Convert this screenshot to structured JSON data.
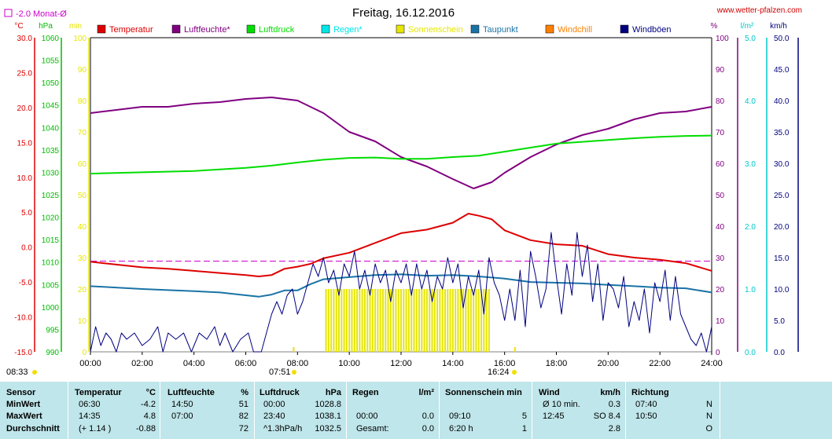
{
  "title": "Freitag, 16.12.2016",
  "site": "www.wetter-pfalzen.com",
  "monthly_avg_label": "-2.0 Monat-Ø",
  "axis_units": {
    "temp": "°C",
    "press": "hPa",
    "sun": "min",
    "hum": "%",
    "rain": "l/m²",
    "wind": "km/h"
  },
  "legend": [
    {
      "label": "Temperatur",
      "color": "#dd0000"
    },
    {
      "label": "Luftfeuchte*",
      "color": "#800080"
    },
    {
      "label": "Luftdruck",
      "color": "#00dd00"
    },
    {
      "label": "Regen*",
      "color": "#00e6e6"
    },
    {
      "label": "Sonnenschein",
      "color": "#e6e600"
    },
    {
      "label": "Taupunkt",
      "color": "#1a73a6"
    },
    {
      "label": "Windchill",
      "color": "#ff8000"
    },
    {
      "label": "Windböen",
      "color": "#000080"
    }
  ],
  "sun_times": {
    "sunrise": "08:33",
    "sunrise_mark": "07:51",
    "sunset": "16:24"
  },
  "colors": {
    "temp_axis": "#dd0000",
    "press_axis": "#00bb00",
    "sun_axis": "#e6e600",
    "hum_axis": "#800080",
    "rain_axis": "#00c8c8",
    "wind_axis": "#000080",
    "monthly": "#cc00cc"
  },
  "chart_data": {
    "type": "line",
    "title": "Freitag, 16.12.2016",
    "x_ticks": [
      "00:00",
      "02:00",
      "04:00",
      "06:00",
      "08:00",
      "10:00",
      "12:00",
      "14:00",
      "16:00",
      "18:00",
      "20:00",
      "22:00",
      "24:00"
    ],
    "xlim_hours": [
      0,
      24
    ],
    "axes": {
      "temp": {
        "ticks": [
          "30.0",
          "25.0",
          "20.0",
          "15.0",
          "10.0",
          "5.0",
          "0.0",
          "-5.0",
          "-10.0",
          "-15.0"
        ],
        "ylim": [
          -15,
          30
        ]
      },
      "press": {
        "ticks": [
          "1060",
          "1055",
          "1050",
          "1045",
          "1040",
          "1035",
          "1030",
          "1025",
          "1020",
          "1015",
          "1010",
          "1005",
          "1000",
          "995",
          "990"
        ],
        "ylim": [
          990,
          1060
        ]
      },
      "sun": {
        "ticks": [
          "100",
          "90",
          "80",
          "70",
          "60",
          "50",
          "40",
          "30",
          "20",
          "10",
          "0"
        ],
        "ylim": [
          0,
          100
        ]
      },
      "hum": {
        "ticks": [
          "100",
          "90",
          "80",
          "70",
          "60",
          "50",
          "40",
          "30",
          "20",
          "10",
          "0"
        ],
        "ylim": [
          0,
          100
        ]
      },
      "rain": {
        "ticks": [
          "5.0",
          "4.0",
          "3.0",
          "2.0",
          "1.0",
          "0.0"
        ],
        "ylim": [
          0,
          5
        ]
      },
      "wind": {
        "ticks": [
          "50.0",
          "45.0",
          "40.0",
          "35.0",
          "30.0",
          "25.0",
          "20.0",
          "15.0",
          "10.0",
          "5.0",
          "0.0"
        ],
        "ylim": [
          0,
          50
        ]
      }
    },
    "monthly_avg_temp": -2.0,
    "series": [
      {
        "name": "Luftfeuchte*",
        "axis": "hum",
        "color": "#800080",
        "points": [
          [
            0,
            76
          ],
          [
            1,
            77
          ],
          [
            2,
            78
          ],
          [
            3,
            78
          ],
          [
            4,
            79
          ],
          [
            5,
            79.5
          ],
          [
            6,
            80.5
          ],
          [
            7,
            81
          ],
          [
            8,
            80
          ],
          [
            9,
            76
          ],
          [
            10,
            70
          ],
          [
            11,
            67
          ],
          [
            12,
            62
          ],
          [
            13,
            59
          ],
          [
            14,
            55
          ],
          [
            14.8,
            52
          ],
          [
            15.5,
            54
          ],
          [
            16,
            57
          ],
          [
            17,
            62
          ],
          [
            18,
            66
          ],
          [
            19,
            69
          ],
          [
            20,
            71
          ],
          [
            21,
            74
          ],
          [
            22,
            76
          ],
          [
            23,
            76.5
          ],
          [
            24,
            78
          ]
        ]
      },
      {
        "name": "Luftdruck",
        "axis": "press",
        "color": "#00dd00",
        "points": [
          [
            0,
            1029.7
          ],
          [
            2,
            1030
          ],
          [
            4,
            1030.3
          ],
          [
            6,
            1031
          ],
          [
            7,
            1031.5
          ],
          [
            8,
            1032.2
          ],
          [
            9,
            1032.8
          ],
          [
            10,
            1033.2
          ],
          [
            11,
            1033.3
          ],
          [
            12,
            1033
          ],
          [
            13,
            1033
          ],
          [
            14,
            1033.4
          ],
          [
            15,
            1033.7
          ],
          [
            16,
            1034.6
          ],
          [
            17,
            1035.5
          ],
          [
            18,
            1036.4
          ],
          [
            19,
            1036.8
          ],
          [
            20,
            1037.2
          ],
          [
            21,
            1037.6
          ],
          [
            22,
            1037.9
          ],
          [
            23,
            1038.1
          ],
          [
            24,
            1038.2
          ]
        ]
      },
      {
        "name": "Temperatur",
        "axis": "temp",
        "color": "#dd0000",
        "points": [
          [
            0,
            -2.1
          ],
          [
            1,
            -2.5
          ],
          [
            2,
            -2.9
          ],
          [
            3,
            -3.1
          ],
          [
            4,
            -3.4
          ],
          [
            5,
            -3.7
          ],
          [
            6,
            -4.0
          ],
          [
            6.5,
            -4.2
          ],
          [
            7,
            -4.0
          ],
          [
            7.5,
            -3.1
          ],
          [
            8,
            -2.8
          ],
          [
            8.5,
            -2.4
          ],
          [
            9,
            -1.6
          ],
          [
            10,
            -0.8
          ],
          [
            11,
            0.6
          ],
          [
            12,
            2.0
          ],
          [
            13,
            2.5
          ],
          [
            13.5,
            3.0
          ],
          [
            14,
            3.5
          ],
          [
            14.6,
            4.8
          ],
          [
            15,
            4.5
          ],
          [
            15.5,
            4.0
          ],
          [
            16,
            2.4
          ],
          [
            17,
            1.0
          ],
          [
            18,
            0.4
          ],
          [
            19,
            0.2
          ],
          [
            20,
            -1.0
          ],
          [
            21,
            -1.5
          ],
          [
            22,
            -1.8
          ],
          [
            23,
            -2.3
          ],
          [
            24,
            -3.4
          ]
        ]
      },
      {
        "name": "Taupunkt",
        "axis": "temp",
        "color": "#1a73a6",
        "points": [
          [
            0,
            -5.6
          ],
          [
            2,
            -6.0
          ],
          [
            4,
            -6.3
          ],
          [
            5,
            -6.5
          ],
          [
            6,
            -6.9
          ],
          [
            6.5,
            -7.1
          ],
          [
            7,
            -6.8
          ],
          [
            7.5,
            -6.2
          ],
          [
            8,
            -6.2
          ],
          [
            8.5,
            -5.3
          ],
          [
            9,
            -4.6
          ],
          [
            10,
            -4.3
          ],
          [
            11,
            -4.0
          ],
          [
            12,
            -3.9
          ],
          [
            13,
            -4.1
          ],
          [
            14,
            -4.0
          ],
          [
            15,
            -4.2
          ],
          [
            16,
            -4.5
          ],
          [
            17,
            -5.0
          ],
          [
            18,
            -5.1
          ],
          [
            19,
            -5.2
          ],
          [
            20,
            -5.4
          ],
          [
            21,
            -5.6
          ],
          [
            22,
            -5.8
          ],
          [
            23,
            -5.9
          ],
          [
            24,
            -6.5
          ]
        ]
      },
      {
        "name": "Windböen",
        "axis": "wind",
        "color": "#000080",
        "points": [
          [
            0,
            0
          ],
          [
            0.2,
            4
          ],
          [
            0.4,
            1
          ],
          [
            0.6,
            3
          ],
          [
            0.8,
            2
          ],
          [
            1.0,
            0
          ],
          [
            1.2,
            3
          ],
          [
            1.4,
            2
          ],
          [
            1.7,
            3
          ],
          [
            2.0,
            1
          ],
          [
            2.3,
            2
          ],
          [
            2.6,
            4
          ],
          [
            2.8,
            0
          ],
          [
            3.0,
            3
          ],
          [
            3.3,
            2
          ],
          [
            3.6,
            3
          ],
          [
            3.9,
            0
          ],
          [
            4.2,
            3
          ],
          [
            4.5,
            2
          ],
          [
            4.8,
            4
          ],
          [
            5.0,
            1
          ],
          [
            5.2,
            3
          ],
          [
            5.5,
            0
          ],
          [
            5.8,
            2
          ],
          [
            6.1,
            3
          ],
          [
            6.3,
            0
          ],
          [
            6.6,
            0
          ],
          [
            6.8,
            3
          ],
          [
            7.0,
            6
          ],
          [
            7.2,
            8
          ],
          [
            7.4,
            6
          ],
          [
            7.6,
            9
          ],
          [
            7.8,
            10
          ],
          [
            8.0,
            6
          ],
          [
            8.2,
            8
          ],
          [
            8.4,
            11
          ],
          [
            8.6,
            14
          ],
          [
            8.8,
            12
          ],
          [
            9.0,
            15
          ],
          [
            9.2,
            11
          ],
          [
            9.4,
            13
          ],
          [
            9.6,
            9
          ],
          [
            9.8,
            14
          ],
          [
            10.0,
            12
          ],
          [
            10.2,
            16
          ],
          [
            10.4,
            10
          ],
          [
            10.6,
            13
          ],
          [
            10.8,
            9
          ],
          [
            11.0,
            14
          ],
          [
            11.2,
            11
          ],
          [
            11.4,
            13
          ],
          [
            11.6,
            8
          ],
          [
            11.8,
            13
          ],
          [
            12.0,
            11
          ],
          [
            12.2,
            14
          ],
          [
            12.4,
            9
          ],
          [
            12.6,
            14
          ],
          [
            12.8,
            10
          ],
          [
            13.0,
            13
          ],
          [
            13.2,
            8
          ],
          [
            13.4,
            12
          ],
          [
            13.6,
            10
          ],
          [
            13.8,
            15
          ],
          [
            14.0,
            11
          ],
          [
            14.2,
            14
          ],
          [
            14.4,
            7
          ],
          [
            14.6,
            12
          ],
          [
            14.8,
            9
          ],
          [
            15.0,
            13
          ],
          [
            15.2,
            6
          ],
          [
            15.4,
            15
          ],
          [
            15.6,
            11
          ],
          [
            15.8,
            9
          ],
          [
            16.0,
            5
          ],
          [
            16.2,
            10
          ],
          [
            16.4,
            5
          ],
          [
            16.6,
            13
          ],
          [
            16.8,
            4
          ],
          [
            17.0,
            16
          ],
          [
            17.2,
            12
          ],
          [
            17.4,
            7
          ],
          [
            17.6,
            10
          ],
          [
            17.8,
            19
          ],
          [
            18.0,
            12
          ],
          [
            18.2,
            6
          ],
          [
            18.4,
            14
          ],
          [
            18.6,
            9
          ],
          [
            18.8,
            19
          ],
          [
            19.0,
            12
          ],
          [
            19.2,
            17
          ],
          [
            19.4,
            8
          ],
          [
            19.6,
            14
          ],
          [
            19.8,
            5
          ],
          [
            20.0,
            11
          ],
          [
            20.2,
            10
          ],
          [
            20.4,
            7
          ],
          [
            20.6,
            12
          ],
          [
            20.8,
            4
          ],
          [
            21.0,
            8
          ],
          [
            21.2,
            5
          ],
          [
            21.4,
            10
          ],
          [
            21.6,
            3
          ],
          [
            21.8,
            11
          ],
          [
            22.0,
            8
          ],
          [
            22.2,
            13
          ],
          [
            22.4,
            5
          ],
          [
            22.6,
            12
          ],
          [
            22.8,
            6
          ],
          [
            23.0,
            4
          ],
          [
            23.2,
            2
          ],
          [
            23.4,
            1
          ],
          [
            23.6,
            3
          ],
          [
            23.8,
            0
          ],
          [
            24.0,
            4
          ]
        ]
      }
    ],
    "sunshine_bars": {
      "from": 9.1,
      "to": 15.4,
      "value": 5
    }
  },
  "stats": {
    "sensor": {
      "header": "Sensor",
      "rows": [
        "MinWert",
        "MaxWert",
        "Durchschnitt"
      ]
    },
    "temperature": {
      "header": "Temperatur",
      "unit": "°C",
      "rows": [
        [
          "06:30",
          "-4.2"
        ],
        [
          "14:35",
          "4.8"
        ],
        [
          "(+ 1.14 )",
          "-0.88"
        ]
      ]
    },
    "humidity": {
      "header": "Luftfeuchte",
      "unit": "%",
      "rows": [
        [
          "14:50",
          "51"
        ],
        [
          "07:00",
          "82"
        ],
        [
          "",
          "72"
        ]
      ]
    },
    "pressure": {
      "header": "Luftdruck",
      "unit": "hPa",
      "rows": [
        [
          "00:00",
          "1028.8"
        ],
        [
          "23:40",
          "1038.1"
        ],
        [
          "^1.3hPa/h",
          "1032.5"
        ]
      ]
    },
    "rain": {
      "header": "Regen",
      "unit": "l/m²",
      "rows": [
        [
          "",
          ""
        ],
        [
          "00:00",
          "0.0"
        ],
        [
          "Gesamt:",
          "0.0"
        ]
      ]
    },
    "sun": {
      "header": "Sonnenschein min",
      "unit": "",
      "rows": [
        [
          "",
          ""
        ],
        [
          "09:10",
          "5"
        ],
        [
          "6:20 h",
          "1"
        ]
      ]
    },
    "wind": {
      "header": "Wind",
      "unit": "km/h",
      "rows": [
        [
          "Ø 10 min.",
          "0.3"
        ],
        [
          "12:45",
          "SO 8.4"
        ],
        [
          "",
          "2.8"
        ]
      ]
    },
    "direction": {
      "header": "Richtung",
      "unit": "",
      "rows": [
        [
          "07:40",
          "N"
        ],
        [
          "10:50",
          "N"
        ],
        [
          "",
          "O"
        ]
      ]
    }
  }
}
